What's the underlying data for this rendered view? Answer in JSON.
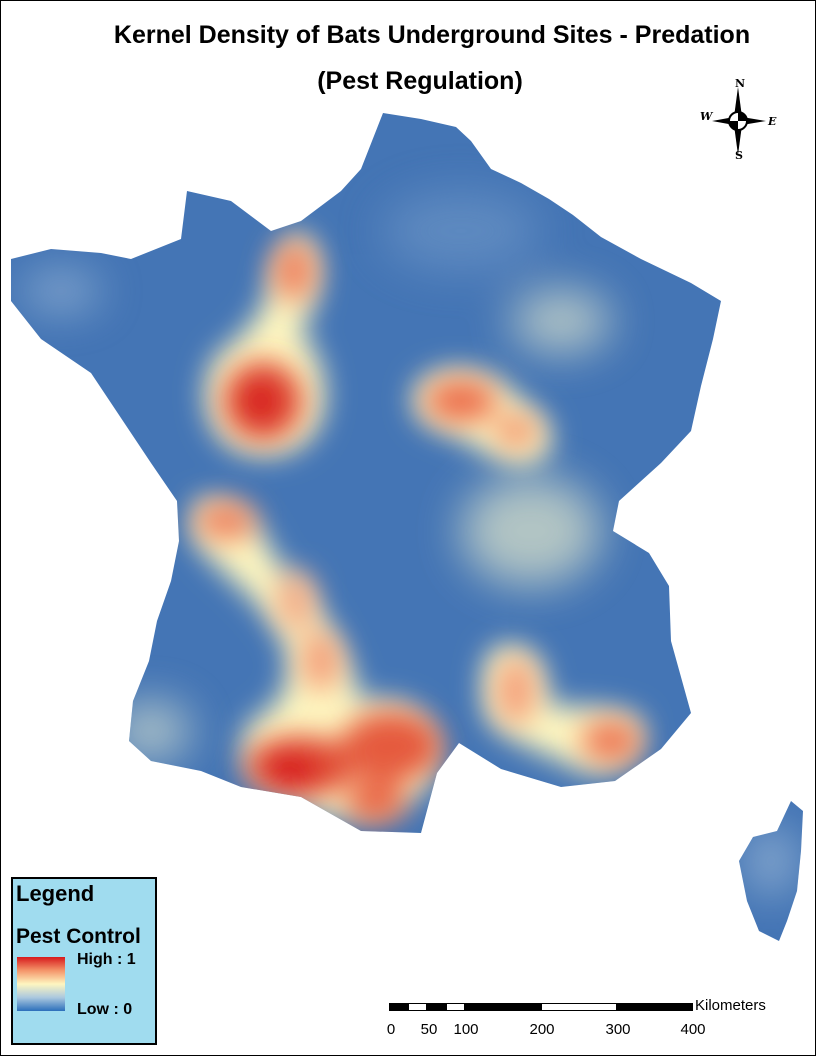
{
  "title": {
    "line1": "Kernel Density of Bats Underground Sites - Predation",
    "line2": "(Pest Regulation)"
  },
  "north_arrow": {
    "icon": "compass-rose-icon",
    "n": "N",
    "s": "S",
    "e": "E",
    "w": "W"
  },
  "legend": {
    "title": "Legend",
    "layer": "Pest Control",
    "high_label": "High : 1",
    "low_label": "Low : 0",
    "colors": [
      "#d7191c",
      "#f4956a",
      "#fef6c0",
      "#abc8df",
      "#2c6fbb"
    ]
  },
  "scale_bar": {
    "units": "Kilometers",
    "ticks": [
      "0",
      "50",
      "100",
      "200",
      "300",
      "400"
    ]
  },
  "map": {
    "low_color": "#3f72b4",
    "high_color": "#d7191c",
    "hotspot_color": "#fef6c0"
  }
}
